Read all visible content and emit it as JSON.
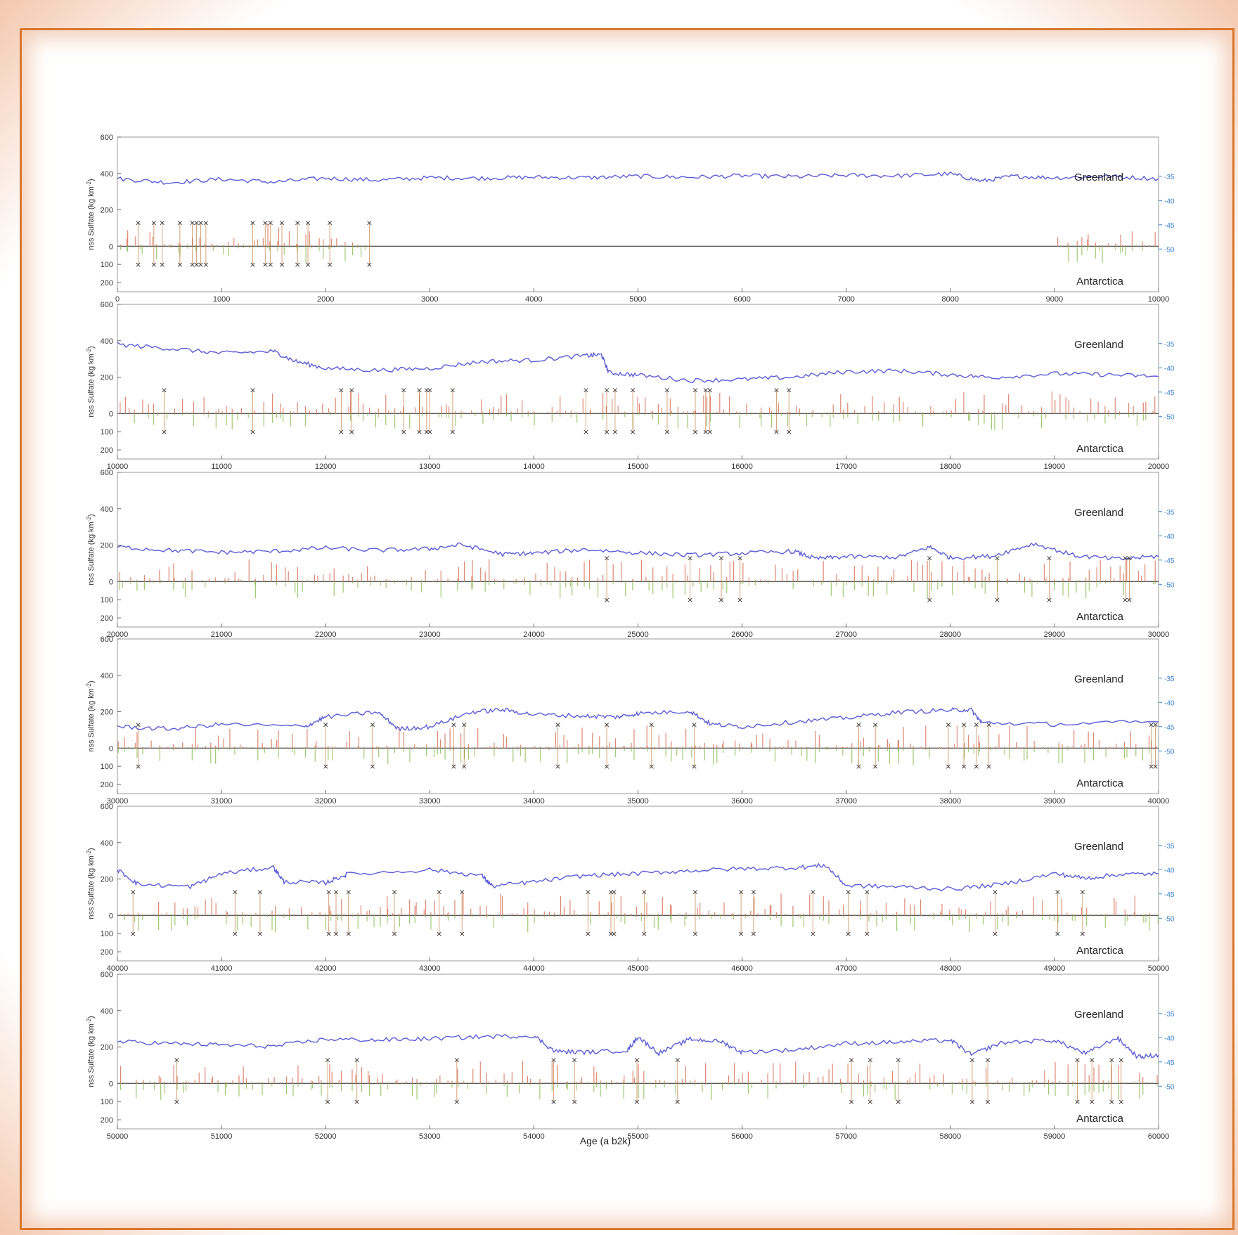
{
  "chart_data": {
    "type": "line",
    "xlabel": "Age (a b2k)",
    "ylabel": "nss Sulfate (kg km⁻²)",
    "ylabel_main": "nss Sulfate (kg km",
    "ylabel_sup": "-2",
    "ylabel_end": ")",
    "upper_label": "Greenland",
    "lower_label": "Antarctica",
    "left_yticks": [
      "600",
      "400",
      "200",
      "0",
      "100",
      "200"
    ],
    "right_yticks": [
      "-35",
      "-40",
      "-45",
      "-50"
    ],
    "colors": {
      "isotope": "#5b5bd6",
      "greenland_sulfate": "#d9735a",
      "antarctica_sulfate": "#8fbf5a",
      "marker": "#333333",
      "right_axis": "#3b82d6"
    },
    "panels": [
      {
        "xlim": [
          0,
          10000
        ],
        "xticks": [
          "0",
          "1000",
          "2000",
          "3000",
          "4000",
          "5000",
          "6000",
          "7000",
          "8000",
          "9000",
          "10000"
        ],
        "isotope_points": [
          [
            0,
            -35.5
          ],
          [
            500,
            -36.3
          ],
          [
            1000,
            -35.6
          ],
          [
            1500,
            -36.2
          ],
          [
            2000,
            -35.4
          ],
          [
            2500,
            -35.8
          ],
          [
            3000,
            -35.3
          ],
          [
            3500,
            -35.4
          ],
          [
            4000,
            -35.2
          ],
          [
            4500,
            -35.3
          ],
          [
            5000,
            -35.0
          ],
          [
            5500,
            -35.2
          ],
          [
            6000,
            -34.9
          ],
          [
            6500,
            -35.1
          ],
          [
            7000,
            -34.8
          ],
          [
            7500,
            -34.9
          ],
          [
            8000,
            -34.5
          ],
          [
            8300,
            -36.0
          ],
          [
            8600,
            -35.0
          ],
          [
            9000,
            -35.3
          ],
          [
            9500,
            -35.0
          ],
          [
            10000,
            -35.5
          ]
        ],
        "matched_events": [
          200,
          350,
          430,
          600,
          720,
          760,
          800,
          850,
          1300,
          1420,
          1470,
          1580,
          1730,
          1830,
          2040,
          2420
        ],
        "gaps": [
          [
            2450,
            9000
          ]
        ]
      },
      {
        "xlim": [
          10000,
          20000
        ],
        "xticks": [
          "10000",
          "11000",
          "12000",
          "13000",
          "14000",
          "15000",
          "16000",
          "17000",
          "18000",
          "19000",
          "20000"
        ],
        "isotope_points": [
          [
            10000,
            -35.2
          ],
          [
            10500,
            -36.0
          ],
          [
            11000,
            -37.0
          ],
          [
            11500,
            -36.6
          ],
          [
            11700,
            -38.6
          ],
          [
            12000,
            -40.1
          ],
          [
            12500,
            -40.5
          ],
          [
            13000,
            -40.1
          ],
          [
            13500,
            -38.7
          ],
          [
            14000,
            -38.4
          ],
          [
            14500,
            -37.5
          ],
          [
            14650,
            -37.3
          ],
          [
            14720,
            -41.0
          ],
          [
            15000,
            -41.5
          ],
          [
            15500,
            -42.6
          ],
          [
            16000,
            -42.4
          ],
          [
            16500,
            -41.9
          ],
          [
            17000,
            -40.8
          ],
          [
            17500,
            -40.6
          ],
          [
            18000,
            -41.4
          ],
          [
            18400,
            -42.0
          ],
          [
            19000,
            -41.2
          ],
          [
            19500,
            -41.4
          ],
          [
            20000,
            -41.8
          ]
        ],
        "matched_events": [
          10450,
          11300,
          12150,
          12250,
          12750,
          12900,
          12970,
          13000,
          13220,
          14500,
          14700,
          14780,
          14950,
          15280,
          15550,
          15650,
          15690,
          16330,
          16450
        ],
        "gaps": []
      },
      {
        "xlim": [
          20000,
          30000
        ],
        "xticks": [
          "20000",
          "21000",
          "22000",
          "23000",
          "24000",
          "25000",
          "26000",
          "27000",
          "28000",
          "29000",
          "30000"
        ],
        "isotope_points": [
          [
            20000,
            -42.3
          ],
          [
            20500,
            -43.0
          ],
          [
            21000,
            -43.4
          ],
          [
            21500,
            -43.2
          ],
          [
            22000,
            -42.5
          ],
          [
            22500,
            -43.0
          ],
          [
            23000,
            -42.7
          ],
          [
            23300,
            -41.8
          ],
          [
            23700,
            -43.8
          ],
          [
            24000,
            -43.6
          ],
          [
            24500,
            -42.8
          ],
          [
            25000,
            -43.5
          ],
          [
            25500,
            -44.0
          ],
          [
            26000,
            -43.6
          ],
          [
            26500,
            -43.2
          ],
          [
            26700,
            -44.7
          ],
          [
            27000,
            -44.3
          ],
          [
            27500,
            -44.4
          ],
          [
            27800,
            -42.3
          ],
          [
            28000,
            -44.5
          ],
          [
            28400,
            -44.2
          ],
          [
            28800,
            -41.6
          ],
          [
            29200,
            -44.1
          ],
          [
            29600,
            -44.8
          ],
          [
            30000,
            -44.2
          ]
        ],
        "matched_events": [
          24700,
          25500,
          25800,
          25980,
          27800,
          28450,
          28950,
          29680,
          29720
        ],
        "gaps": []
      },
      {
        "xlim": [
          30000,
          40000
        ],
        "xticks": [
          "30000",
          "31000",
          "32000",
          "33000",
          "34000",
          "35000",
          "36000",
          "37000",
          "38000",
          "39000",
          "40000"
        ],
        "isotope_points": [
          [
            30000,
            -45.0
          ],
          [
            30500,
            -45.5
          ],
          [
            31000,
            -44.5
          ],
          [
            31800,
            -45.0
          ],
          [
            32000,
            -43.0
          ],
          [
            32500,
            -42.0
          ],
          [
            32700,
            -45.5
          ],
          [
            33000,
            -45.0
          ],
          [
            33400,
            -42.0
          ],
          [
            33700,
            -41.5
          ],
          [
            34000,
            -42.5
          ],
          [
            34500,
            -42.8
          ],
          [
            34800,
            -43.0
          ],
          [
            35000,
            -42.3
          ],
          [
            35500,
            -41.8
          ],
          [
            35700,
            -44.5
          ],
          [
            36000,
            -45.0
          ],
          [
            36500,
            -44.0
          ],
          [
            37000,
            -43.2
          ],
          [
            37500,
            -42.0
          ],
          [
            38000,
            -41.6
          ],
          [
            38200,
            -41.5
          ],
          [
            38300,
            -44.2
          ],
          [
            39000,
            -44.5
          ],
          [
            40000,
            -44.0
          ]
        ],
        "matched_events": [
          30200,
          32000,
          32450,
          33230,
          33330,
          34230,
          34700,
          35130,
          35540,
          37120,
          37280,
          37980,
          38130,
          38250,
          38370,
          39930,
          39970
        ],
        "gaps": []
      },
      {
        "xlim": [
          40000,
          50000
        ],
        "xticks": [
          "40000",
          "41000",
          "42000",
          "43000",
          "44000",
          "45000",
          "46000",
          "47000",
          "48000",
          "49000",
          "50000"
        ],
        "isotope_points": [
          [
            40000,
            -40.0
          ],
          [
            40200,
            -43.0
          ],
          [
            40700,
            -43.5
          ],
          [
            41000,
            -40.8
          ],
          [
            41500,
            -39.5
          ],
          [
            41600,
            -42.5
          ],
          [
            42000,
            -42.7
          ],
          [
            42200,
            -41.0
          ],
          [
            43000,
            -40.0
          ],
          [
            43500,
            -41.2
          ],
          [
            43600,
            -43.4
          ],
          [
            44000,
            -42.5
          ],
          [
            44500,
            -41.2
          ],
          [
            45000,
            -40.8
          ],
          [
            45500,
            -40.2
          ],
          [
            46000,
            -39.8
          ],
          [
            46500,
            -39.6
          ],
          [
            46800,
            -39.1
          ],
          [
            47000,
            -43.3
          ],
          [
            47500,
            -43.5
          ],
          [
            48000,
            -44.0
          ],
          [
            48500,
            -43.0
          ],
          [
            49000,
            -40.8
          ],
          [
            49300,
            -41.8
          ],
          [
            49600,
            -41.0
          ],
          [
            50000,
            -40.8
          ]
        ],
        "matched_events": [
          40150,
          41130,
          41370,
          42030,
          42100,
          42220,
          42660,
          43090,
          43310,
          44520,
          44740,
          44770,
          45060,
          45550,
          45990,
          46110,
          46680,
          47020,
          47200,
          48430,
          49030,
          49270
        ],
        "gaps": []
      },
      {
        "xlim": [
          50000,
          60000
        ],
        "xticks": [
          "50000",
          "51000",
          "52000",
          "53000",
          "54000",
          "55000",
          "56000",
          "57000",
          "58000",
          "59000",
          "60000"
        ],
        "isotope_points": [
          [
            50000,
            -40.8
          ],
          [
            50500,
            -41.2
          ],
          [
            51000,
            -41.5
          ],
          [
            51500,
            -41.8
          ],
          [
            52000,
            -40.3
          ],
          [
            52500,
            -40.5
          ],
          [
            53000,
            -40.2
          ],
          [
            53500,
            -39.8
          ],
          [
            54000,
            -39.6
          ],
          [
            54200,
            -42.8
          ],
          [
            54500,
            -43.0
          ],
          [
            54900,
            -42.6
          ],
          [
            55000,
            -39.8
          ],
          [
            55200,
            -43.2
          ],
          [
            55500,
            -40.3
          ],
          [
            55800,
            -40.8
          ],
          [
            56000,
            -43.0
          ],
          [
            56500,
            -42.5
          ],
          [
            57000,
            -41.2
          ],
          [
            57500,
            -40.9
          ],
          [
            58000,
            -40.5
          ],
          [
            58200,
            -43.5
          ],
          [
            58500,
            -41.0
          ],
          [
            59000,
            -40.5
          ],
          [
            59300,
            -43.3
          ],
          [
            59600,
            -40.0
          ],
          [
            59800,
            -44.0
          ],
          [
            60000,
            -43.6
          ]
        ],
        "matched_events": [
          50570,
          52020,
          52300,
          53260,
          54190,
          54390,
          54990,
          55380,
          57050,
          57230,
          57500,
          58210,
          58360,
          59220,
          59360,
          59550,
          59640
        ],
        "gaps": []
      }
    ]
  }
}
